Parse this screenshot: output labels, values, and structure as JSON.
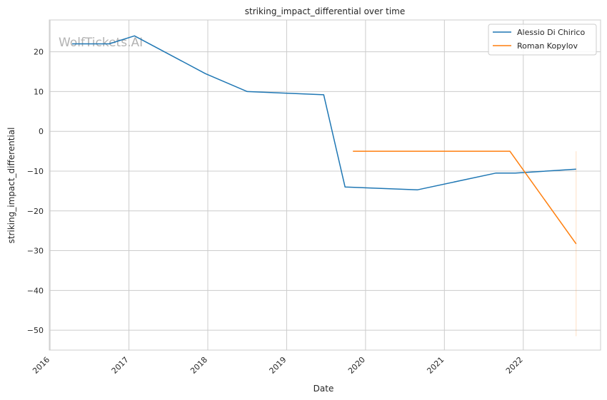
{
  "chart_data": {
    "type": "line",
    "title": "striking_impact_differential over time",
    "xlabel": "Date",
    "ylabel": "striking_impact_differential",
    "watermark": "WolfTickets.AI",
    "x_ticks": [
      "2016",
      "2017",
      "2018",
      "2019",
      "2020",
      "2021",
      "2022"
    ],
    "y_ticks": [
      20,
      10,
      0,
      -10,
      -20,
      -30,
      -40,
      -50
    ],
    "xlim": [
      2015.99,
      2022.98
    ],
    "ylim": [
      -55,
      28
    ],
    "grid": true,
    "legend_position": "top-right",
    "series": [
      {
        "name": "Alessio Di Chirico",
        "color": "#1f77b4",
        "points": [
          {
            "x": 2016.28,
            "y": 22
          },
          {
            "x": 2016.75,
            "y": 22
          },
          {
            "x": 2017.07,
            "y": 24
          },
          {
            "x": 2017.97,
            "y": 14.5
          },
          {
            "x": 2018.5,
            "y": 10
          },
          {
            "x": 2019.47,
            "y": 9.2
          },
          {
            "x": 2019.74,
            "y": -14
          },
          {
            "x": 2020.66,
            "y": -14.7
          },
          {
            "x": 2021.65,
            "y": -10.5
          },
          {
            "x": 2021.9,
            "y": -10.5
          },
          {
            "x": 2022.67,
            "y": -9.5
          }
        ]
      },
      {
        "name": "Roman Kopylov",
        "color": "#ff7f0e",
        "points": [
          {
            "x": 2019.84,
            "y": -5
          },
          {
            "x": 2021.83,
            "y": -5
          },
          {
            "x": 2022.67,
            "y": -28.3
          }
        ],
        "error_band": {
          "x": 2022.67,
          "y_low": -51.5,
          "y_high": -5
        }
      }
    ]
  }
}
